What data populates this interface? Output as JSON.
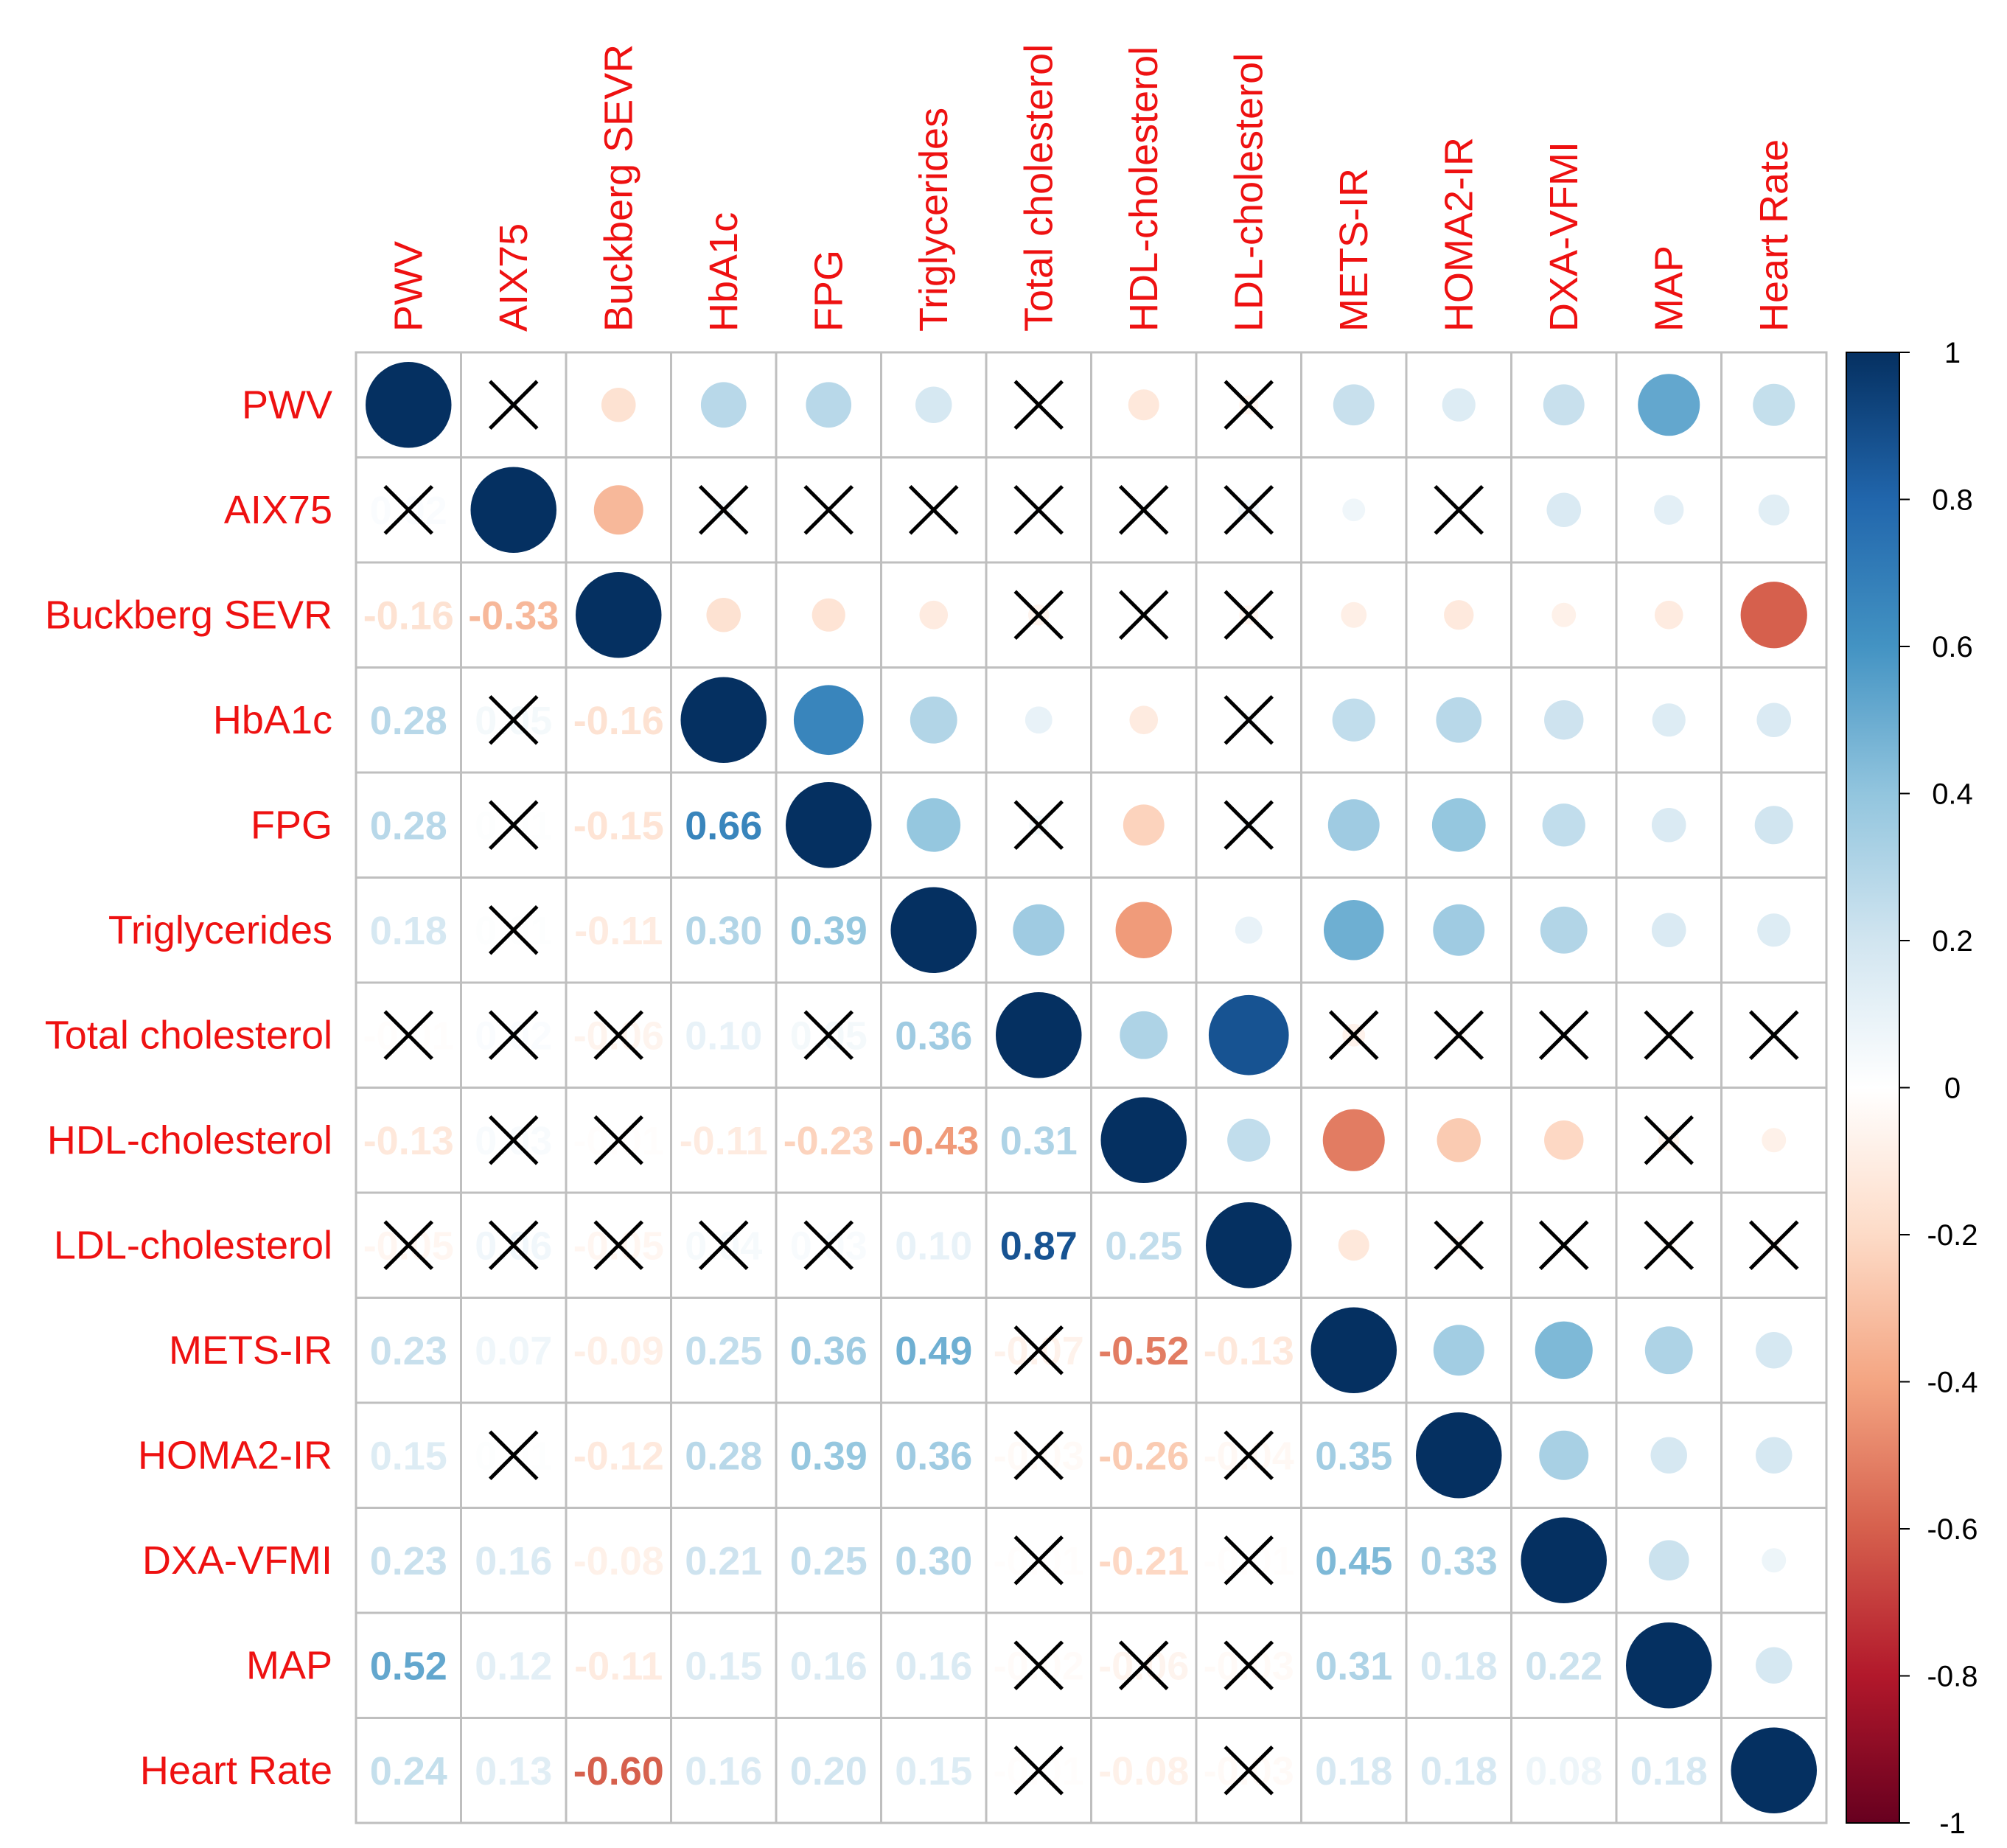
{
  "chart_data": {
    "type": "heatmap",
    "title": "",
    "variables": [
      "PWV",
      "AIX75",
      "Buckberg SEVR",
      "HbA1c",
      "FPG",
      "Triglycerides",
      "Total cholesterol",
      "HDL-cholesterol",
      "LDL-cholesterol",
      "METS-IR",
      "HOMA2-IR",
      "DXA-VFMI",
      "MAP",
      "Heart Rate"
    ],
    "matrix": [
      [
        1.0,
        0.02,
        -0.16,
        0.28,
        0.28,
        0.18,
        -0.01,
        -0.13,
        -0.05,
        0.23,
        0.15,
        0.23,
        0.52,
        0.24
      ],
      [
        0.02,
        1.0,
        -0.33,
        0.05,
        0.01,
        0.01,
        0.02,
        0.03,
        0.06,
        0.07,
        0.01,
        0.16,
        0.12,
        0.13
      ],
      [
        -0.16,
        -0.33,
        1.0,
        -0.16,
        -0.15,
        -0.11,
        -0.06,
        -0.01,
        -0.05,
        -0.09,
        -0.12,
        -0.08,
        -0.11,
        -0.6
      ],
      [
        0.28,
        0.05,
        -0.16,
        1.0,
        0.66,
        0.3,
        0.1,
        -0.11,
        0.04,
        0.25,
        0.28,
        0.21,
        0.15,
        0.16
      ],
      [
        0.28,
        0.01,
        -0.15,
        0.66,
        1.0,
        0.39,
        0.05,
        -0.23,
        0.03,
        0.36,
        0.39,
        0.25,
        0.16,
        0.2
      ],
      [
        0.18,
        0.01,
        -0.11,
        0.3,
        0.39,
        1.0,
        0.36,
        -0.43,
        0.1,
        0.49,
        0.36,
        0.3,
        0.16,
        0.15
      ],
      [
        -0.01,
        0.02,
        -0.06,
        0.1,
        0.05,
        0.36,
        1.0,
        0.31,
        0.87,
        -0.07,
        -0.03,
        -0.01,
        -0.02,
        -0.01
      ],
      [
        -0.13,
        0.03,
        -0.01,
        -0.11,
        -0.23,
        -0.43,
        0.31,
        1.0,
        0.25,
        -0.52,
        -0.26,
        -0.21,
        -0.06,
        -0.08
      ],
      [
        -0.05,
        0.06,
        -0.05,
        0.04,
        0.03,
        0.1,
        0.87,
        0.25,
        1.0,
        -0.13,
        -0.04,
        -0.01,
        -0.03,
        -0.03
      ],
      [
        0.23,
        0.07,
        -0.09,
        0.25,
        0.36,
        0.49,
        -0.07,
        -0.52,
        -0.13,
        1.0,
        0.35,
        0.45,
        0.31,
        0.18
      ],
      [
        0.15,
        0.01,
        -0.12,
        0.28,
        0.39,
        0.36,
        -0.03,
        -0.26,
        -0.04,
        0.35,
        1.0,
        0.33,
        0.18,
        0.18
      ],
      [
        0.23,
        0.16,
        -0.08,
        0.21,
        0.25,
        0.3,
        -0.01,
        -0.21,
        -0.01,
        0.45,
        0.33,
        1.0,
        0.22,
        0.08
      ],
      [
        0.52,
        0.12,
        -0.11,
        0.15,
        0.16,
        0.16,
        -0.02,
        -0.06,
        -0.03,
        0.31,
        0.18,
        0.22,
        1.0,
        0.18
      ],
      [
        0.24,
        0.13,
        -0.6,
        0.16,
        0.2,
        0.15,
        -0.01,
        -0.08,
        -0.03,
        0.18,
        0.18,
        0.08,
        0.18,
        1.0
      ]
    ],
    "labels": [
      [
        "",
        "",
        "",
        "",
        "",
        "",
        "",
        "",
        "",
        "",
        "",
        "",
        "",
        ""
      ],
      [
        "0.02",
        "",
        "",
        "",
        "",
        "",
        "",
        "",
        "",
        "",
        "",
        "",
        "",
        ""
      ],
      [
        "-0.16",
        "-0.33",
        "",
        "",
        "",
        "",
        "",
        "",
        "",
        "",
        "",
        "",
        "",
        ""
      ],
      [
        "0.28",
        "0.05",
        "-0.16",
        "",
        "",
        "",
        "",
        "",
        "",
        "",
        "",
        "",
        "",
        ""
      ],
      [
        "0.28",
        "0.01",
        "-0.15",
        "0.66",
        "",
        "",
        "",
        "",
        "",
        "",
        "",
        "",
        "",
        ""
      ],
      [
        "0.18",
        "0.01",
        "-0.11",
        "0.30",
        "0.39",
        "",
        "",
        "",
        "",
        "",
        "",
        "",
        "",
        ""
      ],
      [
        "-0.01",
        "0.02",
        "-0.06",
        "0.10",
        "0.05",
        "0.36",
        "",
        "",
        "",
        "",
        "",
        "",
        "",
        ""
      ],
      [
        "-0.13",
        "0.03",
        "-0.01",
        "-0.11",
        "-0.23",
        "-0.43",
        "0.31",
        "",
        "",
        "",
        "",
        "",
        "",
        ""
      ],
      [
        "-0.05",
        "0.06",
        "-0.05",
        "0.04",
        "0.03",
        "0.10",
        "0.87",
        "0.25",
        "",
        "",
        "",
        "",
        "",
        ""
      ],
      [
        "0.23",
        "0.07",
        "-0.09",
        "0.25",
        "0.36",
        "0.49",
        "-0.07",
        "-0.52",
        "-0.13",
        "",
        "",
        "",
        "",
        ""
      ],
      [
        "0.15",
        "0.01",
        "-0.12",
        "0.28",
        "0.39",
        "0.36",
        "-0.03",
        "-0.26",
        "-0.04",
        "0.35",
        "",
        "",
        "",
        ""
      ],
      [
        "0.23",
        "0.16",
        "-0.08",
        "0.21",
        "0.25",
        "0.30",
        "-0.01",
        "-0.21",
        "-0.01",
        "0.45",
        "0.33",
        "",
        "",
        ""
      ],
      [
        "0.52",
        "0.12",
        "-0.11",
        "0.15",
        "0.16",
        "0.16",
        "-0.02",
        "-0.06",
        "-0.03",
        "0.31",
        "0.18",
        "0.22",
        "",
        ""
      ],
      [
        "0.24",
        "0.13",
        "-0.60",
        "0.16",
        "0.20",
        "0.15",
        "-0.01",
        "-0.08",
        "-0.03",
        "0.18",
        "0.18",
        "0.08",
        "0.18",
        ""
      ]
    ],
    "insignificant": [
      [
        0,
        1
      ],
      [
        0,
        6
      ],
      [
        0,
        8
      ],
      [
        1,
        0
      ],
      [
        1,
        3
      ],
      [
        1,
        4
      ],
      [
        1,
        5
      ],
      [
        1,
        6
      ],
      [
        1,
        7
      ],
      [
        1,
        8
      ],
      [
        1,
        10
      ],
      [
        2,
        6
      ],
      [
        2,
        7
      ],
      [
        2,
        8
      ],
      [
        3,
        1
      ],
      [
        3,
        8
      ],
      [
        4,
        1
      ],
      [
        4,
        6
      ],
      [
        4,
        8
      ],
      [
        5,
        1
      ],
      [
        6,
        0
      ],
      [
        6,
        1
      ],
      [
        6,
        2
      ],
      [
        6,
        4
      ],
      [
        6,
        9
      ],
      [
        6,
        10
      ],
      [
        6,
        11
      ],
      [
        6,
        12
      ],
      [
        6,
        13
      ],
      [
        7,
        1
      ],
      [
        7,
        2
      ],
      [
        7,
        12
      ],
      [
        8,
        0
      ],
      [
        8,
        1
      ],
      [
        8,
        2
      ],
      [
        8,
        3
      ],
      [
        8,
        4
      ],
      [
        8,
        10
      ],
      [
        8,
        11
      ],
      [
        8,
        12
      ],
      [
        8,
        13
      ],
      [
        9,
        6
      ],
      [
        10,
        1
      ],
      [
        10,
        6
      ],
      [
        10,
        8
      ],
      [
        11,
        6
      ],
      [
        11,
        8
      ],
      [
        12,
        6
      ],
      [
        12,
        7
      ],
      [
        12,
        8
      ],
      [
        13,
        6
      ],
      [
        13,
        8
      ]
    ],
    "upper_method": "circle",
    "lower_method": "number",
    "label_color": "#ee1111",
    "legend": {
      "min": -1,
      "max": 1,
      "ticks": [
        "1",
        "0.8",
        "0.6",
        "0.4",
        "0.2",
        "0",
        "-0.2",
        "-0.4",
        "-0.6",
        "-0.8",
        "-1"
      ],
      "colors": [
        "#67001f",
        "#b2182b",
        "#d6604d",
        "#f4a582",
        "#fddbc7",
        "#ffffff",
        "#d1e5f0",
        "#92c5de",
        "#4393c3",
        "#2166ac",
        "#053061"
      ]
    }
  }
}
